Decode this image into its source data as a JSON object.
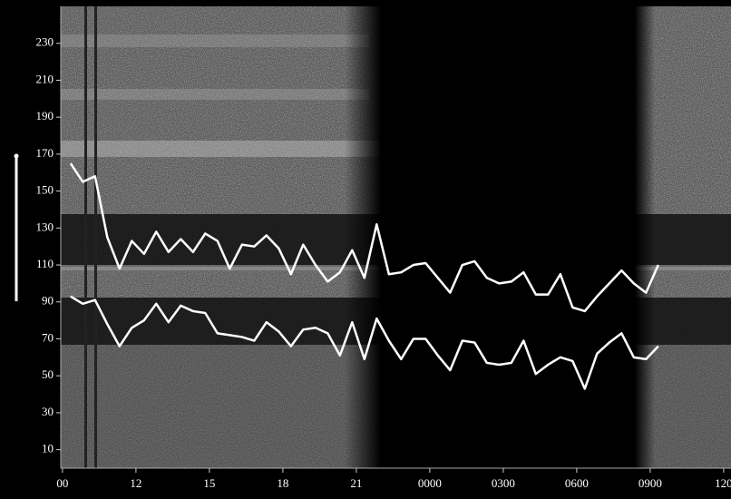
{
  "chart_data": {
    "type": "line",
    "x": [
      9.33,
      9.83,
      10.33,
      10.83,
      11.33,
      11.83,
      12.33,
      12.83,
      13.33,
      13.83,
      14.33,
      14.83,
      15.33,
      15.83,
      16.33,
      16.83,
      17.33,
      17.83,
      18.33,
      18.83,
      19.33,
      19.83,
      20.33,
      20.83,
      21.33,
      21.83,
      22.33,
      22.83,
      23.33,
      23.83,
      24.33,
      24.83,
      25.33,
      25.83,
      26.33,
      26.83,
      27.33,
      27.83,
      28.33,
      28.83,
      29.33,
      29.83,
      30.33,
      30.83,
      31.33,
      31.83,
      32.33,
      32.83,
      33.33
    ],
    "series": [
      {
        "color": "#ffffff",
        "values": [
          165,
          155,
          158,
          125,
          108,
          123,
          116,
          128,
          117,
          124,
          117,
          127,
          123,
          108,
          121,
          120,
          126,
          119,
          105,
          121,
          110,
          101,
          106,
          118,
          103,
          132,
          105,
          106,
          110,
          111,
          103,
          95,
          110,
          112,
          103,
          100,
          101,
          106,
          94,
          94,
          105,
          87,
          85,
          93,
          100,
          107,
          100,
          95,
          110
        ]
      },
      {
        "color": "#ffffff",
        "values": [
          93,
          89,
          91,
          78,
          66,
          76,
          80,
          89,
          79,
          88,
          85,
          84,
          73,
          72,
          71,
          69,
          79,
          74,
          66,
          75,
          76,
          73,
          61,
          79,
          59,
          81,
          69,
          59,
          70,
          70,
          61,
          53,
          69,
          68,
          57,
          56,
          57,
          69,
          51,
          56,
          60,
          58,
          43,
          62,
          68,
          73,
          60,
          59,
          66
        ]
      }
    ],
    "xlim": [
      8.93,
      36.3
    ],
    "xticks": [
      {
        "value": 9,
        "label": "00"
      },
      12,
      15,
      18,
      21,
      {
        "value": 24,
        "label": "0000"
      },
      {
        "value": 27,
        "label": "0300"
      },
      {
        "value": 30,
        "label": "0600"
      },
      {
        "value": 33,
        "label": "0900"
      },
      {
        "value": 36,
        "label": "120"
      }
    ],
    "ylim": [
      0,
      250
    ],
    "yticks": [
      10,
      30,
      50,
      70,
      90,
      110,
      130,
      150,
      170,
      190,
      210,
      230
    ]
  }
}
